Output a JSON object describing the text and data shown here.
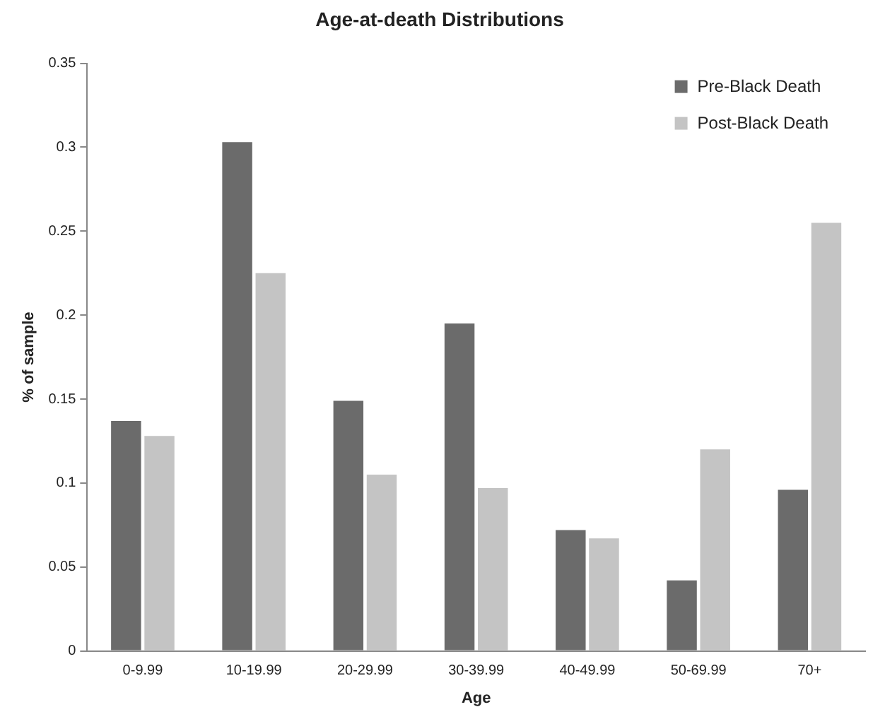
{
  "chart_data": {
    "type": "bar",
    "title": "Age-at-death Distributions",
    "xlabel": "Age",
    "ylabel": "% of sample",
    "categories": [
      "0-9.99",
      "10-19.99",
      "20-29.99",
      "30-39.99",
      "40-49.99",
      "50-69.99",
      "70+"
    ],
    "series": [
      {
        "name": "Pre-Black Death",
        "color": "#6b6b6b",
        "values": [
          0.137,
          0.303,
          0.149,
          0.195,
          0.072,
          0.042,
          0.096
        ]
      },
      {
        "name": "Post-Black Death",
        "color": "#c4c4c4",
        "values": [
          0.128,
          0.225,
          0.105,
          0.097,
          0.067,
          0.12,
          0.255
        ]
      }
    ],
    "ylim": [
      0,
      0.35
    ],
    "yticks": [
      0,
      0.05,
      0.1,
      0.15,
      0.2,
      0.25,
      0.3,
      0.35
    ],
    "grid": false,
    "legend": "top right"
  }
}
